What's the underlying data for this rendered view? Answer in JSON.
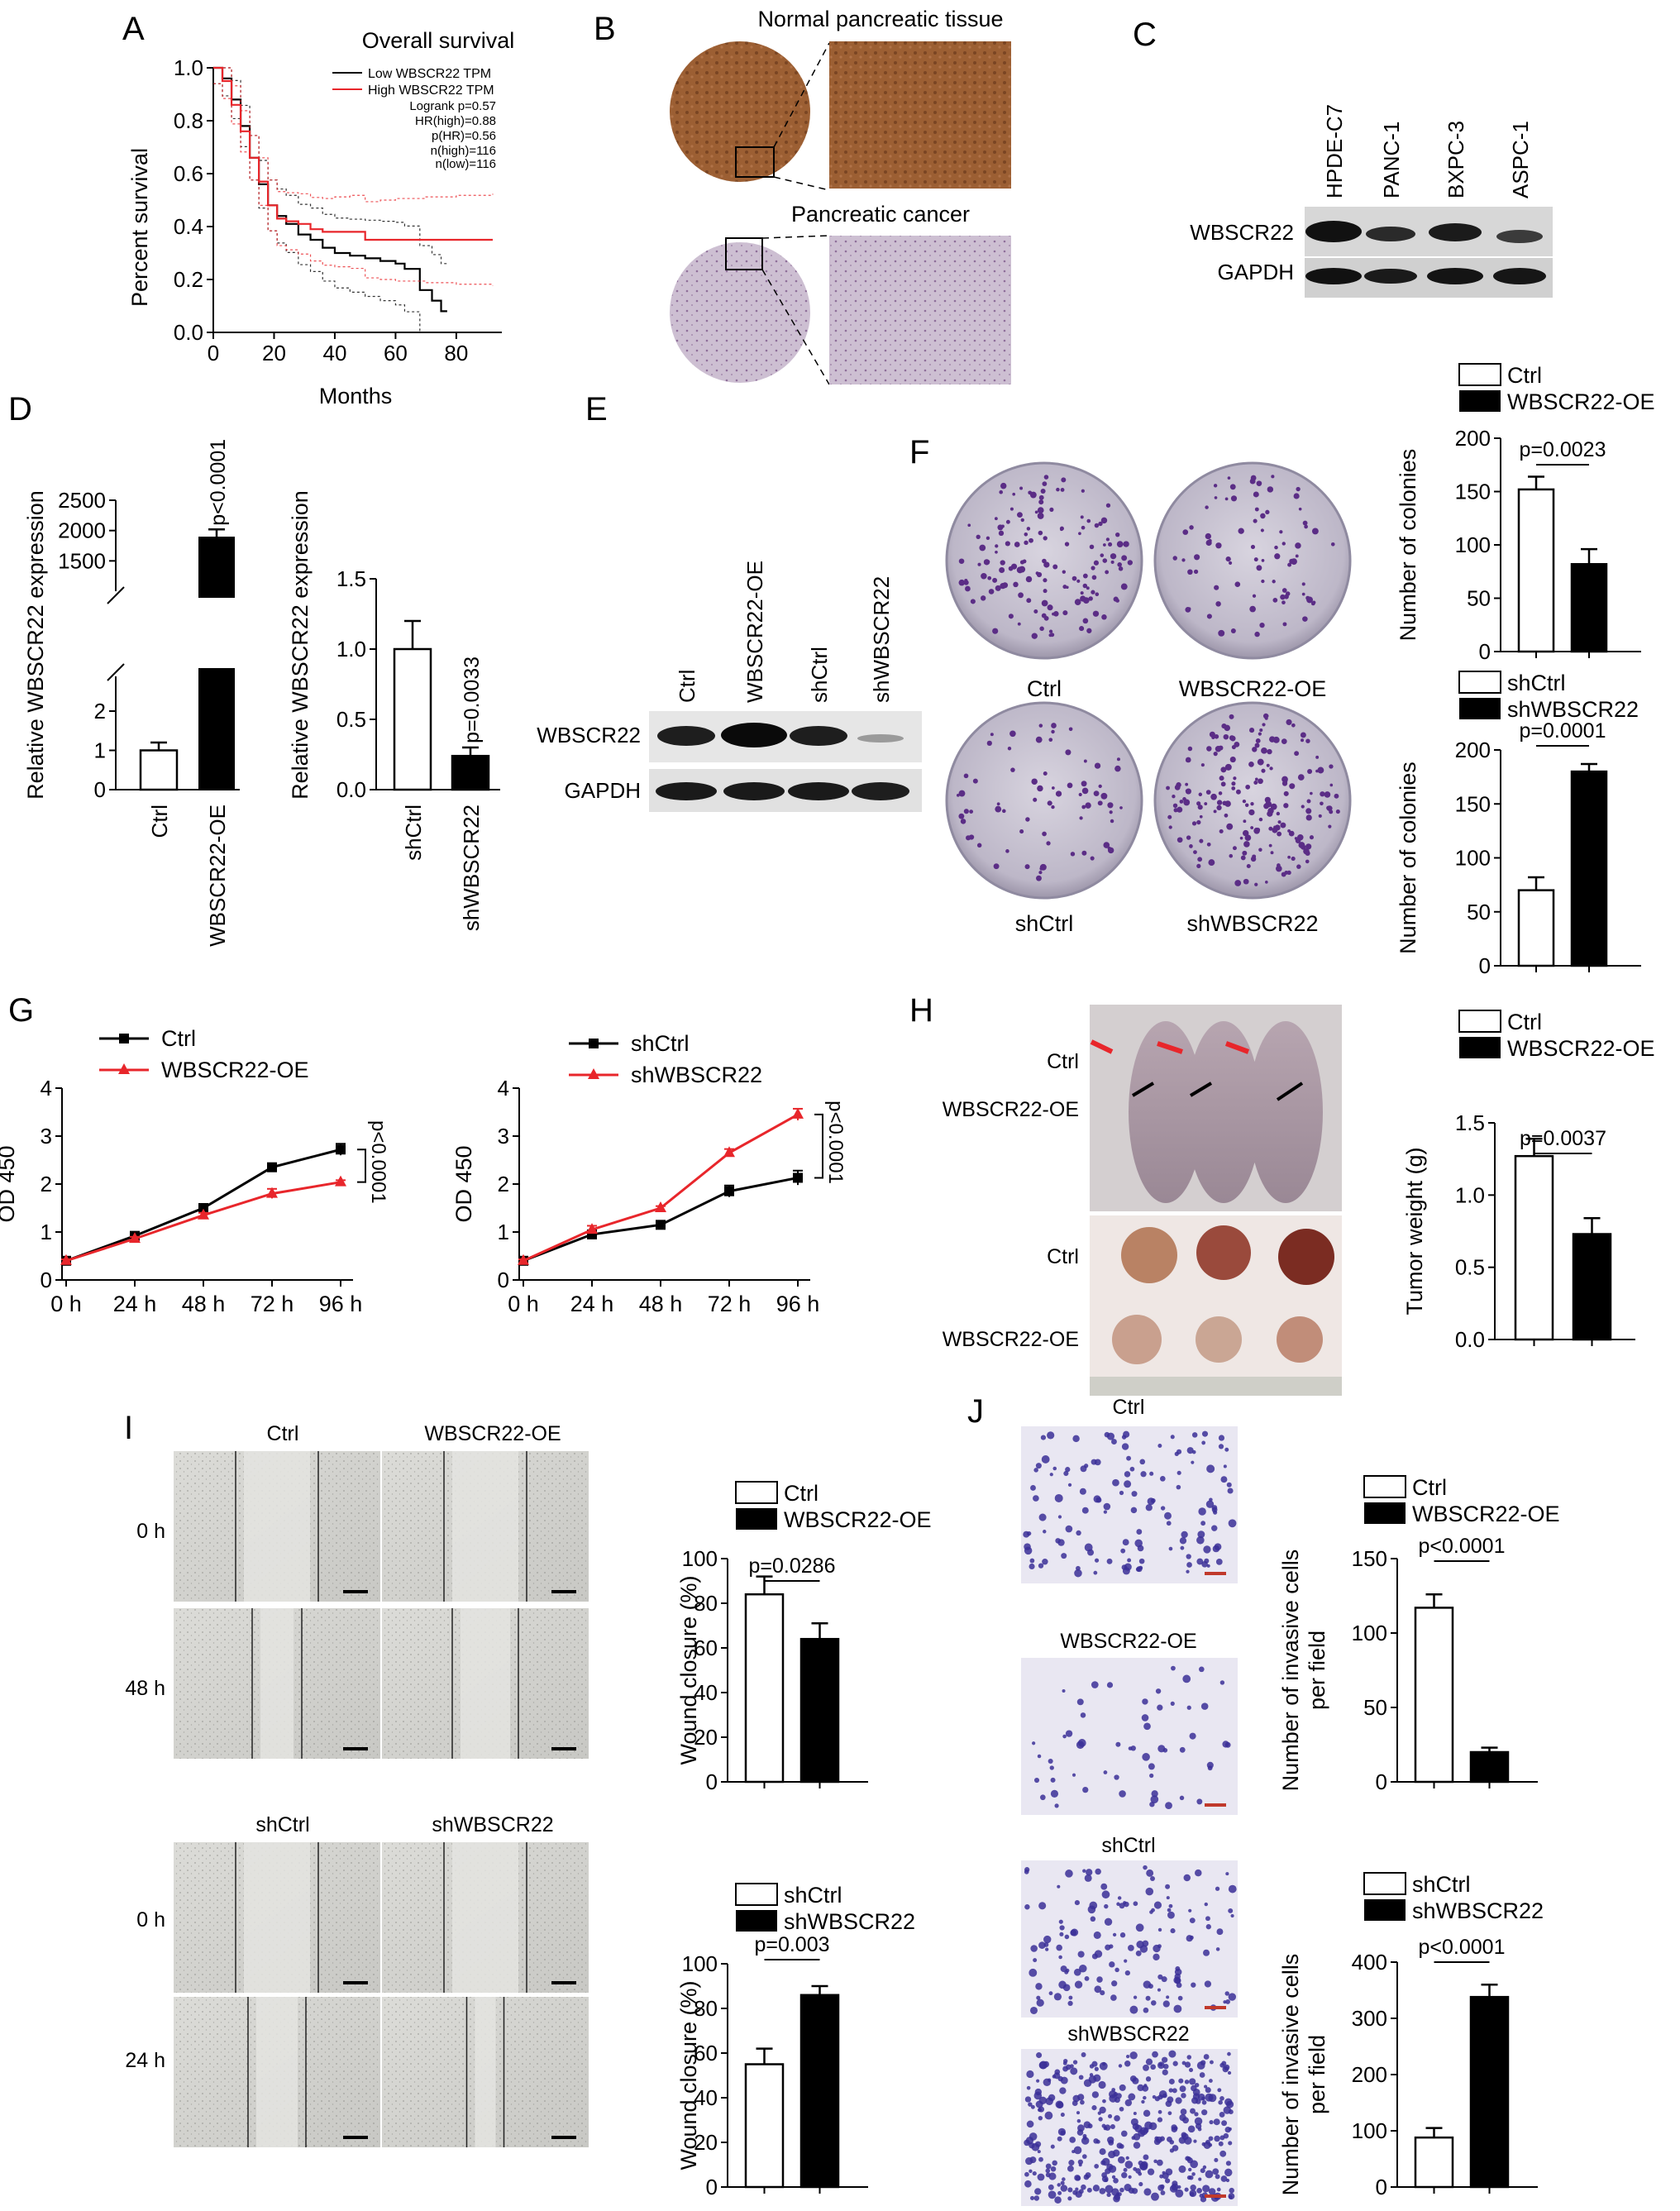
{
  "panels": {
    "A": {
      "letter": "A",
      "title": "Overall survival",
      "xlabel": "Months",
      "ylabel": "Percent survival",
      "legend": [
        "Low WBSCR22 TPM",
        "High WBSCR22 TPM"
      ],
      "stats": [
        "Logrank p=0.57",
        "HR(high)=0.88",
        "p(HR)=0.56",
        "n(high)=116",
        "n(low)=116"
      ],
      "colors": {
        "low": "#000000",
        "high": "#e8262b"
      }
    },
    "B": {
      "letter": "B",
      "label_top": "Normal pancreatic tissue",
      "label_bottom": "Pancreatic cancer"
    },
    "C": {
      "letter": "C",
      "lanes": [
        "HPDE-C7",
        "PANC-1",
        "BXPC-3",
        "ASPC-1"
      ],
      "rows": [
        "WBSCR22",
        "GAPDH"
      ]
    },
    "D": {
      "letter": "D",
      "ylabel": "Relative WBSCR22 expression",
      "left": {
        "categories": [
          "Ctrl",
          "WBSCR22-OE"
        ],
        "p": "p<0.0001"
      },
      "right": {
        "categories": [
          "shCtrl",
          "shWBSCR22"
        ],
        "p": "p=0.0033"
      }
    },
    "E": {
      "letter": "E",
      "lanes": [
        "Ctrl",
        "WBSCR22-OE",
        "shCtrl",
        "shWBSCR22"
      ],
      "rows": [
        "WBSCR22",
        "GAPDH"
      ]
    },
    "F": {
      "letter": "F",
      "plates": [
        "Ctrl",
        "WBSCR22-OE",
        "shCtrl",
        "shWBSCR22"
      ],
      "ylabel": "Number of colonies",
      "top": {
        "legend": [
          "Ctrl",
          "WBSCR22-OE"
        ],
        "p": "p=0.0023"
      },
      "bottom": {
        "legend": [
          "shCtrl",
          "shWBSCR22"
        ],
        "p": "p=0.0001"
      }
    },
    "G": {
      "letter": "G",
      "ylabel": "OD 450",
      "left": {
        "legend": [
          "Ctrl",
          "WBSCR22-OE"
        ],
        "p": "p<0.0001"
      },
      "right": {
        "legend": [
          "shCtrl",
          "shWBSCR22"
        ],
        "p": "p<0.0001"
      }
    },
    "H": {
      "letter": "H",
      "row_labels": [
        "Ctrl",
        "WBSCR22-OE",
        "Ctrl",
        "WBSCR22-OE"
      ],
      "legend": [
        "Ctrl",
        "WBSCR22-OE"
      ],
      "ylabel": "Tumor weight (g)",
      "p": "p=0.0037"
    },
    "I": {
      "letter": "I",
      "col_top": [
        "Ctrl",
        "WBSCR22-OE"
      ],
      "col_bottom": [
        "shCtrl",
        "shWBSCR22"
      ],
      "rows_top": [
        "0 h",
        "48 h"
      ],
      "rows_bottom": [
        "0 h",
        "24 h"
      ],
      "ylabel": "Wound closure (%)",
      "top": {
        "legend": [
          "Ctrl",
          "WBSCR22-OE"
        ],
        "p": "p=0.0286"
      },
      "bottom": {
        "legend": [
          "shCtrl",
          "shWBSCR22"
        ],
        "p": "p=0.003"
      }
    },
    "J": {
      "letter": "J",
      "images": [
        "Ctrl",
        "WBSCR22-OE",
        "shCtrl",
        "shWBSCR22"
      ],
      "ylabel": [
        "Number of invasive cells",
        "per field"
      ],
      "top": {
        "legend": [
          "Ctrl",
          "WBSCR22-OE"
        ],
        "p": "p<0.0001"
      },
      "bottom": {
        "legend": [
          "shCtrl",
          "shWBSCR22"
        ],
        "p": "p<0.0001"
      }
    }
  },
  "chart_data": [
    {
      "id": "A",
      "type": "line",
      "title": "Overall survival",
      "xlabel": "Months",
      "ylabel": "Percent survival",
      "xlim": [
        0,
        95
      ],
      "ylim": [
        0,
        1.0
      ],
      "xticks": [
        0,
        20,
        40,
        60,
        80
      ],
      "yticks": [
        0.0,
        0.2,
        0.4,
        0.6,
        0.8,
        1.0
      ],
      "series": [
        {
          "name": "Low WBSCR22 TPM",
          "color": "#000000",
          "x": [
            0,
            3,
            6,
            9,
            12,
            15,
            18,
            21,
            24,
            28,
            32,
            36,
            40,
            45,
            50,
            55,
            60,
            63,
            68,
            72,
            75,
            77
          ],
          "y": [
            1.0,
            0.96,
            0.88,
            0.78,
            0.66,
            0.56,
            0.48,
            0.44,
            0.41,
            0.37,
            0.35,
            0.32,
            0.3,
            0.29,
            0.28,
            0.27,
            0.26,
            0.24,
            0.16,
            0.12,
            0.08,
            0.08
          ]
        },
        {
          "name": "High WBSCR22 TPM",
          "color": "#e8262b",
          "x": [
            0,
            3,
            6,
            9,
            12,
            15,
            18,
            21,
            24,
            28,
            32,
            36,
            40,
            45,
            50,
            55,
            60,
            70,
            80,
            92
          ],
          "y": [
            1.0,
            0.95,
            0.86,
            0.76,
            0.66,
            0.57,
            0.48,
            0.43,
            0.42,
            0.41,
            0.39,
            0.38,
            0.38,
            0.38,
            0.35,
            0.35,
            0.35,
            0.35,
            0.35,
            0.35
          ]
        }
      ]
    },
    {
      "id": "D-left",
      "type": "bar",
      "categories": [
        "Ctrl",
        "WBSCR22-OE"
      ],
      "values": [
        1,
        1900
      ],
      "errors": [
        0.2,
        120
      ],
      "yticks": [
        0,
        1,
        2,
        1500,
        2000,
        2500
      ],
      "ylabel": "Relative WBSCR22 expression"
    },
    {
      "id": "D-right",
      "type": "bar",
      "categories": [
        "shCtrl",
        "shWBSCR22"
      ],
      "values": [
        1.0,
        0.24
      ],
      "errors": [
        0.2,
        0.06
      ],
      "ylim": [
        0,
        1.5
      ],
      "yticks": [
        0.0,
        0.5,
        1.0,
        1.5
      ],
      "ylabel": "Relative WBSCR22 expression"
    },
    {
      "id": "F-top",
      "type": "bar",
      "categories": [
        "Ctrl",
        "WBSCR22-OE"
      ],
      "values": [
        152,
        82
      ],
      "errors": [
        12,
        14
      ],
      "ylim": [
        0,
        200
      ],
      "yticks": [
        0,
        50,
        100,
        150,
        200
      ],
      "ylabel": "Number of colonies"
    },
    {
      "id": "F-bottom",
      "type": "bar",
      "categories": [
        "shCtrl",
        "shWBSCR22"
      ],
      "values": [
        70,
        180
      ],
      "errors": [
        12,
        7
      ],
      "ylim": [
        0,
        200
      ],
      "yticks": [
        0,
        50,
        100,
        150,
        200
      ],
      "ylabel": "Number of colonies"
    },
    {
      "id": "G-left",
      "type": "line",
      "categories": [
        "0 h",
        "24 h",
        "48 h",
        "72 h",
        "96 h"
      ],
      "ylim": [
        0,
        4
      ],
      "yticks": [
        0,
        1,
        2,
        3,
        4
      ],
      "ylabel": "OD 450",
      "series": [
        {
          "name": "Ctrl",
          "color": "#000000",
          "values": [
            0.4,
            0.92,
            1.5,
            2.35,
            2.72
          ],
          "errors": [
            0.03,
            0.04,
            0.05,
            0.06,
            0.12
          ]
        },
        {
          "name": "WBSCR22-OE",
          "color": "#e8262b",
          "values": [
            0.4,
            0.86,
            1.35,
            1.8,
            2.04
          ],
          "errors": [
            0.03,
            0.04,
            0.05,
            0.1,
            0.04
          ]
        }
      ]
    },
    {
      "id": "G-right",
      "type": "line",
      "categories": [
        "0 h",
        "24 h",
        "48 h",
        "72 h",
        "96 h"
      ],
      "ylim": [
        0,
        4
      ],
      "yticks": [
        0,
        1,
        2,
        3,
        4
      ],
      "ylabel": "OD 450",
      "series": [
        {
          "name": "shCtrl",
          "color": "#000000",
          "values": [
            0.4,
            0.95,
            1.15,
            1.85,
            2.13
          ],
          "errors": [
            0.03,
            0.06,
            0.08,
            0.12,
            0.15
          ]
        },
        {
          "name": "shWBSCR22",
          "color": "#e8262b",
          "values": [
            0.4,
            1.05,
            1.5,
            2.65,
            3.45
          ],
          "errors": [
            0.03,
            0.08,
            0.04,
            0.08,
            0.12
          ]
        }
      ]
    },
    {
      "id": "H",
      "type": "bar",
      "categories": [
        "Ctrl",
        "WBSCR22-OE"
      ],
      "values": [
        1.27,
        0.73
      ],
      "errors": [
        0.12,
        0.11
      ],
      "ylim": [
        0,
        1.5
      ],
      "yticks": [
        0.0,
        0.5,
        1.0,
        1.5
      ],
      "ylabel": "Tumor weight (g)"
    },
    {
      "id": "I-top",
      "type": "bar",
      "categories": [
        "Ctrl",
        "WBSCR22-OE"
      ],
      "values": [
        84,
        64
      ],
      "errors": [
        8,
        7
      ],
      "ylim": [
        0,
        100
      ],
      "yticks": [
        0,
        20,
        40,
        60,
        80,
        100
      ],
      "ylabel": "Wound closure (%)"
    },
    {
      "id": "I-bottom",
      "type": "bar",
      "categories": [
        "shCtrl",
        "shWBSCR22"
      ],
      "values": [
        55,
        86
      ],
      "errors": [
        7,
        4
      ],
      "ylim": [
        0,
        100
      ],
      "yticks": [
        0,
        20,
        40,
        60,
        80,
        100
      ],
      "ylabel": "Wound closure (%)"
    },
    {
      "id": "J-top",
      "type": "bar",
      "categories": [
        "Ctrl",
        "WBSCR22-OE"
      ],
      "values": [
        117,
        20
      ],
      "errors": [
        9,
        3
      ],
      "ylim": [
        0,
        150
      ],
      "yticks": [
        0,
        50,
        100,
        150
      ],
      "ylabel": "Number of invasive cells per field"
    },
    {
      "id": "J-bottom",
      "type": "bar",
      "categories": [
        "shCtrl",
        "shWBSCR22"
      ],
      "values": [
        88,
        338
      ],
      "errors": [
        17,
        22
      ],
      "ylim": [
        0,
        400
      ],
      "yticks": [
        0,
        100,
        200,
        300,
        400
      ],
      "ylabel": "Number of invasive cells per field"
    }
  ]
}
